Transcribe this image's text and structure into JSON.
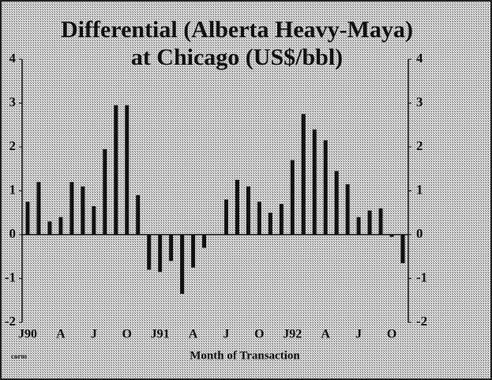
{
  "chart_data": {
    "type": "bar",
    "title": [
      "Differential (Alberta Heavy-Maya)",
      "at Chicago (US$/bbl)"
    ],
    "x_label": "Month of Transaction",
    "source": "corm",
    "categories": [
      "J90",
      null,
      null,
      "A",
      null,
      null,
      "J",
      null,
      null,
      "O",
      null,
      null,
      "J91",
      null,
      null,
      "A",
      null,
      null,
      "J",
      null,
      null,
      "O",
      null,
      null,
      "J92",
      null,
      null,
      "A",
      null,
      null,
      "J",
      null,
      null,
      "O",
      null
    ],
    "values": [
      0.75,
      1.2,
      0.3,
      0.4,
      1.2,
      1.1,
      0.65,
      1.95,
      2.95,
      2.95,
      0.9,
      -0.8,
      -0.85,
      -0.6,
      -1.35,
      -0.75,
      -0.3,
      0,
      0.8,
      1.25,
      1.1,
      0.75,
      0.5,
      0.7,
      1.7,
      2.75,
      2.4,
      2.15,
      1.45,
      1.15,
      0.4,
      0.55,
      0.6,
      -0.05,
      -0.65
    ],
    "color": "#111111",
    "ylim": [
      -2,
      4
    ],
    "yticks": [
      -2,
      -1,
      0,
      1,
      2,
      3,
      4
    ],
    "y2lim": [
      -2,
      4
    ],
    "y2ticks": [
      -2,
      -1,
      0,
      1,
      2,
      3,
      4
    ]
  }
}
